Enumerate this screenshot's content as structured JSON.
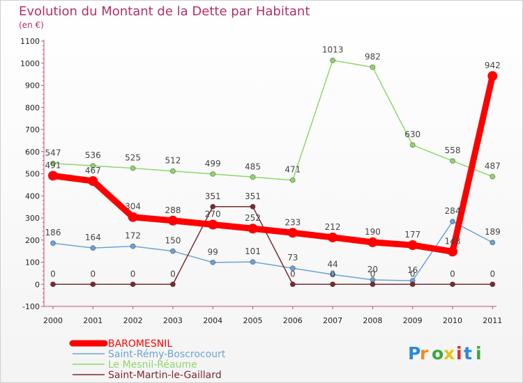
{
  "chart_data": {
    "type": "line",
    "title": "Evolution du Montant de la Dette par Habitant",
    "subtitle": "(en €)",
    "x": [
      "2000",
      "2001",
      "2002",
      "2003",
      "2004",
      "2005",
      "2006",
      "2007",
      "2008",
      "2009",
      "2010",
      "2011"
    ],
    "y_ticks": [
      "-100",
      "0",
      "100",
      "200",
      "300",
      "400",
      "500",
      "600",
      "700",
      "800",
      "900",
      "1000",
      "1100"
    ],
    "ylim": [
      -100,
      1100
    ],
    "grid": false,
    "legend_position": "bottom-left",
    "series": [
      {
        "name": "Le Mesnil-Réaume",
        "color": "#8fd66a",
        "values": [
          547,
          536,
          525,
          512,
          499,
          485,
          471,
          1013,
          982,
          630,
          558,
          487
        ],
        "labels": [
          "547",
          "536",
          "525",
          "512",
          "499",
          "485",
          "471",
          "1013",
          "982",
          "630",
          "558",
          "487"
        ]
      },
      {
        "name": "Saint-Rémy-Boscrocourt",
        "color": "#6aa3d5",
        "values": [
          186,
          164,
          172,
          150,
          99,
          101,
          73,
          44,
          20,
          16,
          284,
          189
        ],
        "labels": [
          "186",
          "164",
          "172",
          "150",
          "99",
          "101",
          "73",
          "44",
          "20",
          "16",
          "284",
          "189"
        ]
      },
      {
        "name": "Saint-Martin-le-Gaillard",
        "color": "#7a2a2f",
        "values": [
          0,
          0,
          0,
          0,
          351,
          351,
          0,
          0,
          0,
          0,
          0,
          0
        ],
        "labels": [
          "0",
          "0",
          "0",
          "0",
          "351",
          "351",
          "0",
          "0",
          "0",
          "0",
          "0",
          "0"
        ]
      },
      {
        "name": "BAROMESNIL",
        "color": "#ff0000",
        "values": [
          491,
          467,
          304,
          288,
          270,
          252,
          233,
          212,
          190,
          177,
          148,
          942
        ],
        "labels": [
          "491",
          "467",
          "304",
          "288",
          "270",
          "252",
          "233",
          "212",
          "190",
          "177",
          "148",
          "942"
        ]
      }
    ],
    "legend_order": [
      "BAROMESNIL",
      "Saint-Rémy-Boscrocourt",
      "Le Mesnil-Réaume",
      "Saint-Martin-le-Gaillard"
    ]
  },
  "logo": {
    "text": "Proxiti"
  }
}
